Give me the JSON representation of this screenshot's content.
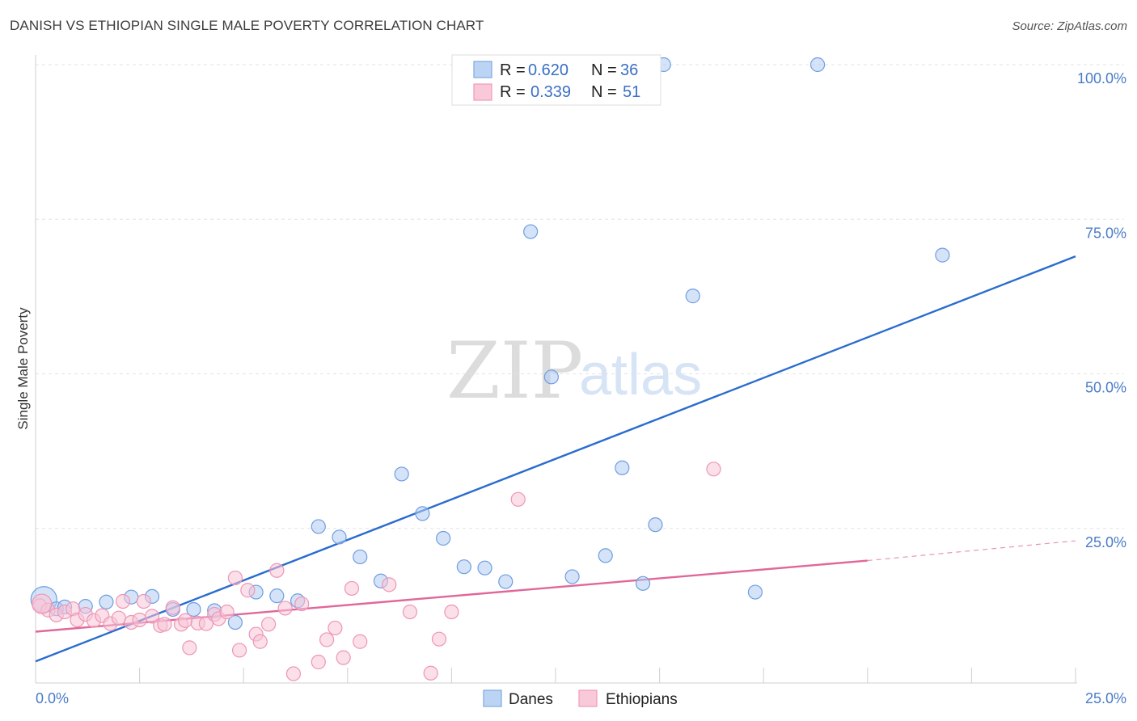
{
  "header": {
    "title": "DANISH VS ETHIOPIAN SINGLE MALE POVERTY CORRELATION CHART",
    "source": "Source: ZipAtlas.com"
  },
  "watermark": {
    "zip": "ZIP",
    "atlas": "atlas"
  },
  "legend_top": {
    "rows": [
      {
        "r_label": "R = ",
        "r_value": "0.620",
        "n_label": "N = ",
        "n_value": "36"
      },
      {
        "r_label": "R = ",
        "r_value": "0.339",
        "n_label": "N = ",
        "n_value": "51"
      }
    ]
  },
  "legend_bottom": {
    "items": [
      "Danes",
      "Ethiopians"
    ]
  },
  "chart_data": {
    "type": "scatter",
    "title": "DANISH VS ETHIOPIAN SINGLE MALE POVERTY CORRELATION CHART",
    "xlabel": "",
    "ylabel": "Single Male Poverty",
    "xlim": [
      0,
      25
    ],
    "ylim": [
      0,
      100
    ],
    "x_tick_labels": [
      "0.0%",
      "25.0%"
    ],
    "y_tick_labels": [
      "100.0%",
      "75.0%",
      "50.0%",
      "25.0%"
    ],
    "y_ticks": [
      100,
      75,
      50,
      25
    ],
    "x_minor_ticks": [
      0,
      2.5,
      5,
      7.5,
      10,
      12.5,
      15,
      17.5,
      20,
      22.5,
      25
    ],
    "grid": true,
    "colors": {
      "Danes": "#7ea8e0",
      "Ethiopians": "#f09ab8",
      "danes_line": "#2a6ccf",
      "ethiopians_line": "#e0679a"
    },
    "series": [
      {
        "name": "Danes",
        "r": 0.62,
        "n": 36,
        "points": [
          [
            0.2,
            13.5
          ],
          [
            0.5,
            12
          ],
          [
            0.7,
            12.3
          ],
          [
            1.2,
            12.4
          ],
          [
            1.7,
            13.1
          ],
          [
            2.3,
            13.9
          ],
          [
            2.8,
            14
          ],
          [
            3.3,
            11.9
          ],
          [
            3.8,
            11.9
          ],
          [
            4.3,
            11.7
          ],
          [
            4.8,
            9.8
          ],
          [
            5.3,
            14.7
          ],
          [
            5.8,
            14.1
          ],
          [
            6.3,
            13.3
          ],
          [
            6.8,
            25.3
          ],
          [
            7.3,
            23.6
          ],
          [
            7.8,
            20.4
          ],
          [
            8.3,
            16.5
          ],
          [
            8.8,
            33.8
          ],
          [
            9.3,
            27.4
          ],
          [
            9.8,
            23.4
          ],
          [
            10.3,
            18.8
          ],
          [
            10.8,
            18.6
          ],
          [
            11.3,
            16.4
          ],
          [
            11.9,
            73
          ],
          [
            12.4,
            49.5
          ],
          [
            12.9,
            17.2
          ],
          [
            13.7,
            20.6
          ],
          [
            14.1,
            34.8
          ],
          [
            14.6,
            16.1
          ],
          [
            14.9,
            25.6
          ],
          [
            15.1,
            100
          ],
          [
            15.8,
            62.6
          ],
          [
            17.3,
            14.7
          ],
          [
            18.8,
            100
          ],
          [
            21.8,
            69.2
          ]
        ],
        "trend": {
          "x": [
            0,
            25
          ],
          "y": [
            3.5,
            69
          ]
        }
      },
      {
        "name": "Ethiopians",
        "r": 0.339,
        "n": 51,
        "points": [
          [
            0.1,
            12.5
          ],
          [
            0.3,
            11.8
          ],
          [
            0.5,
            11
          ],
          [
            0.7,
            11.5
          ],
          [
            0.9,
            12
          ],
          [
            1.0,
            10.2
          ],
          [
            1.2,
            11.1
          ],
          [
            1.4,
            10.1
          ],
          [
            1.6,
            10.9
          ],
          [
            1.8,
            9.6
          ],
          [
            2.0,
            10.5
          ],
          [
            2.1,
            13.2
          ],
          [
            2.3,
            9.8
          ],
          [
            2.5,
            10.2
          ],
          [
            2.6,
            13.2
          ],
          [
            2.8,
            10.8
          ],
          [
            3.0,
            9.3
          ],
          [
            3.1,
            9.5
          ],
          [
            3.3,
            12.2
          ],
          [
            3.5,
            9.5
          ],
          [
            3.6,
            10.1
          ],
          [
            3.7,
            5.7
          ],
          [
            3.9,
            9.7
          ],
          [
            4.1,
            9.6
          ],
          [
            4.3,
            11.1
          ],
          [
            4.4,
            10.4
          ],
          [
            4.6,
            11.5
          ],
          [
            4.8,
            17
          ],
          [
            4.9,
            5.3
          ],
          [
            5.1,
            15
          ],
          [
            5.3,
            7.9
          ],
          [
            5.4,
            6.7
          ],
          [
            5.6,
            9.5
          ],
          [
            5.8,
            18.2
          ],
          [
            6.0,
            12.1
          ],
          [
            6.2,
            1.5
          ],
          [
            6.4,
            12.8
          ],
          [
            6.8,
            3.4
          ],
          [
            7.0,
            7
          ],
          [
            7.2,
            8.9
          ],
          [
            7.4,
            4.1
          ],
          [
            7.6,
            15.3
          ],
          [
            7.8,
            6.7
          ],
          [
            8.5,
            15.9
          ],
          [
            9.0,
            11.5
          ],
          [
            9.5,
            1.6
          ],
          [
            9.7,
            7.1
          ],
          [
            10.0,
            11.5
          ],
          [
            11.6,
            29.7
          ],
          [
            16.3,
            34.6
          ],
          [
            0.15,
            12.8
          ]
        ],
        "trend": {
          "x": [
            0,
            20
          ],
          "y": [
            8.3,
            19.8
          ]
        },
        "trend_dashed": {
          "x": [
            20,
            25
          ],
          "y": [
            19.8,
            23
          ]
        }
      }
    ]
  }
}
